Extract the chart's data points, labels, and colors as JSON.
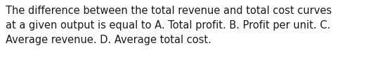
{
  "text": "The difference between the total revenue and total cost curves\nat a given output is equal to A. Total profit. B. Profit per unit. C.\nAverage revenue. D. Average total cost.",
  "background_color": "#ffffff",
  "text_color": "#1a1a1a",
  "font_size": 10.5,
  "fig_width": 5.58,
  "fig_height": 1.05,
  "dpi": 100
}
